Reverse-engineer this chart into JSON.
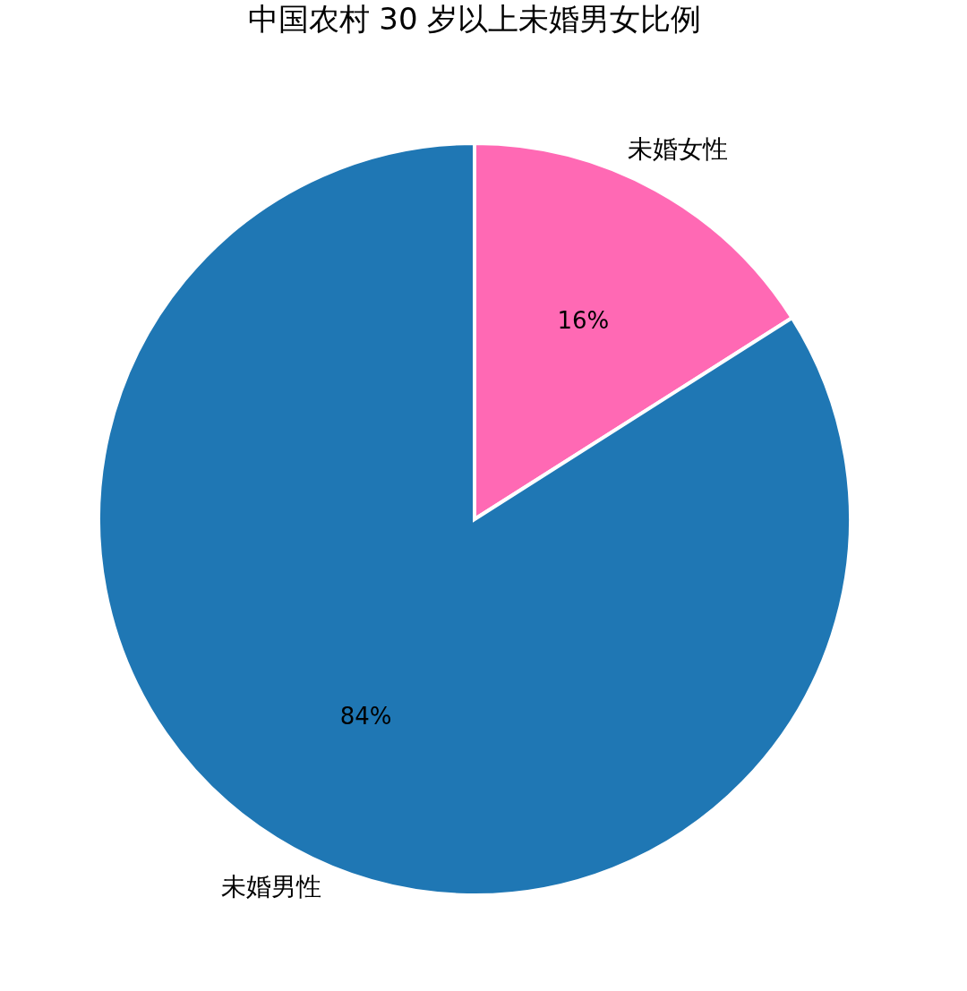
{
  "chart_data": {
    "type": "pie",
    "title": "中国农村 30 岁以上未婚男女比例",
    "categories": [
      "未婚女性",
      "未婚男性"
    ],
    "values": [
      16,
      84
    ],
    "colors": [
      "#ff69b4",
      "#1f77b4"
    ],
    "value_labels": [
      "16%",
      "84%"
    ]
  }
}
